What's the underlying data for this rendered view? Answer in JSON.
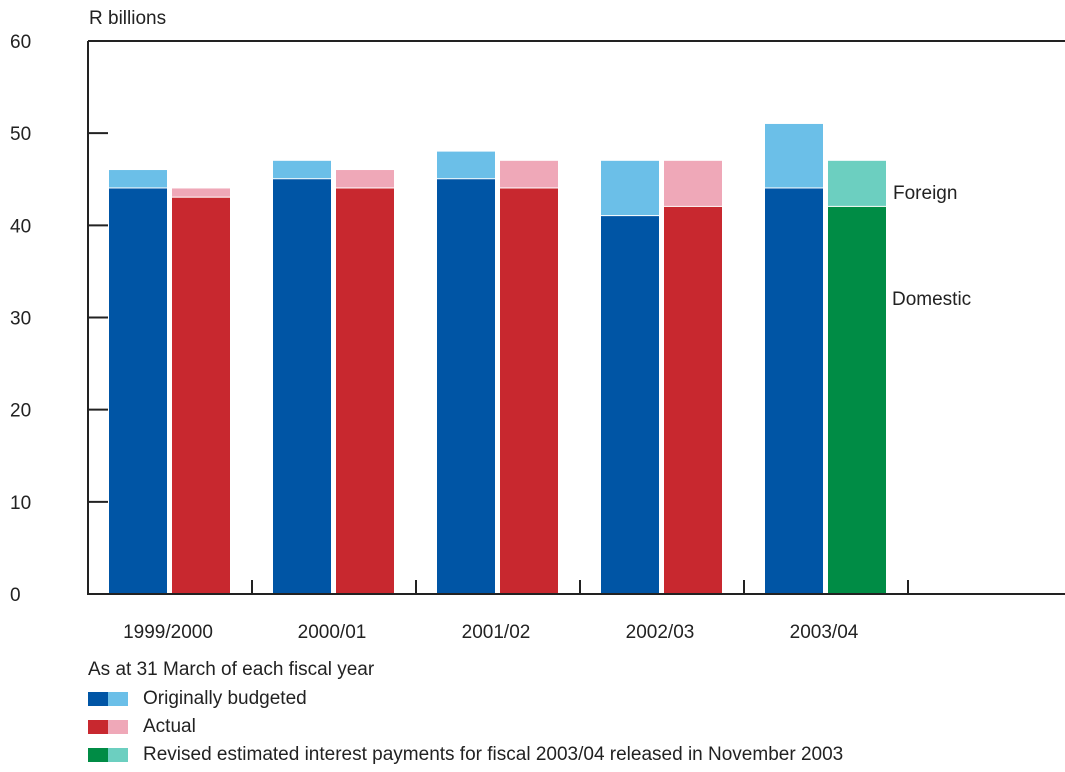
{
  "chart_data": {
    "type": "bar",
    "stacked": true,
    "ylabel": "R billions",
    "xlabel": "As at 31 March of each fiscal year",
    "ylim": [
      0,
      60
    ],
    "yticks": [
      0,
      10,
      20,
      30,
      40,
      50,
      60
    ],
    "categories": [
      "1999/2000",
      "2000/01",
      "2001/02",
      "2002/03",
      "2003/04"
    ],
    "groups": [
      {
        "name": "Originally budgeted",
        "dark_color": "#0055a5",
        "light_color": "#6bbfe8",
        "domestic": [
          44,
          45,
          45,
          41,
          44
        ],
        "foreign": [
          2,
          2,
          3,
          6,
          7
        ]
      },
      {
        "name": "Actual",
        "dark_color": "#c8282f",
        "light_color": "#efa8b8",
        "domestic": [
          43,
          44,
          44,
          42,
          null
        ],
        "foreign": [
          1,
          2,
          3,
          5,
          null
        ]
      },
      {
        "name": "Revised estimated interest payments for fiscal 2003/04 released in November 2003",
        "dark_color": "#008c45",
        "light_color": "#6ccfc0",
        "domestic": [
          null,
          null,
          null,
          null,
          42
        ],
        "foreign": [
          null,
          null,
          null,
          null,
          5
        ]
      }
    ],
    "annotations": {
      "foreign": "Foreign",
      "domestic": "Domestic"
    },
    "grid": false
  }
}
